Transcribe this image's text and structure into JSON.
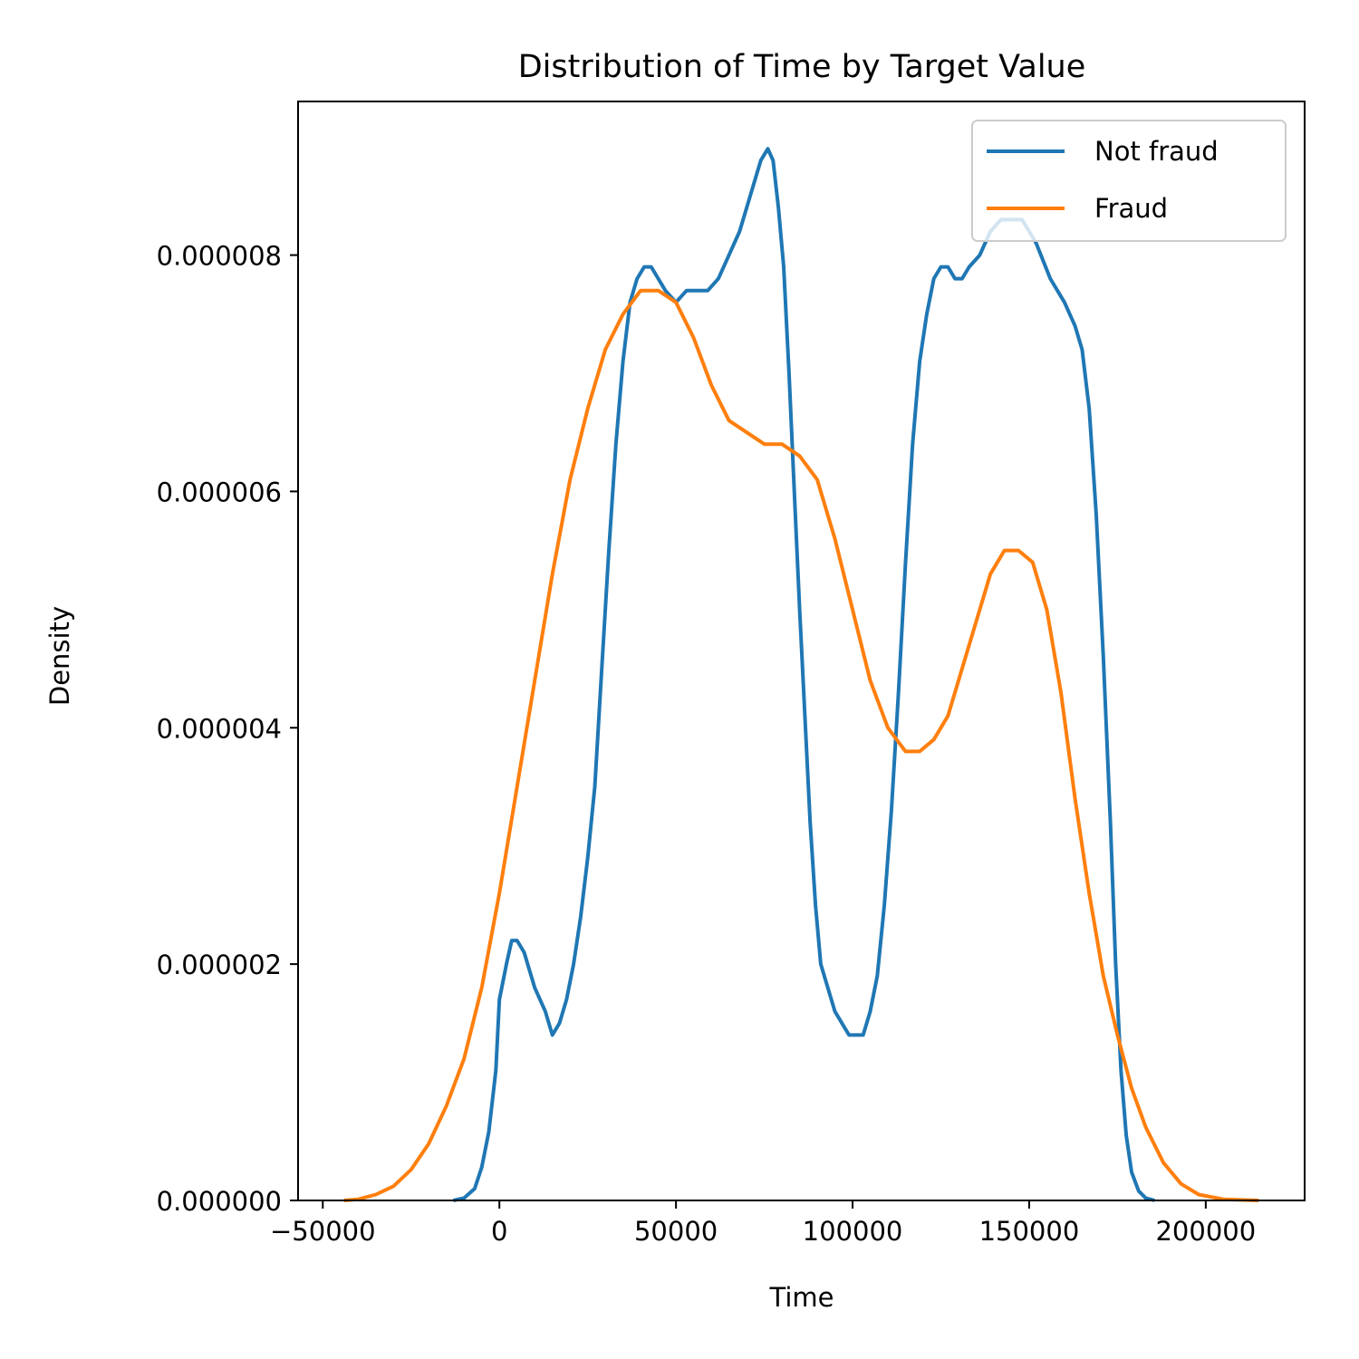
{
  "chart_data": {
    "type": "line",
    "title": "Distribution of Time by Target Value",
    "xlabel": "Time",
    "ylabel": "Density",
    "xlim": [
      -57000,
      228000
    ],
    "ylim": [
      0,
      9.3e-06
    ],
    "xticks": [
      -50000,
      0,
      50000,
      100000,
      150000,
      200000
    ],
    "xtick_labels": [
      "−50000",
      "0",
      "50000",
      "100000",
      "150000",
      "200000"
    ],
    "yticks": [
      0,
      2e-06,
      4e-06,
      6e-06,
      8e-06
    ],
    "ytick_labels": [
      "0.000000",
      "0.000002",
      "0.000004",
      "0.000006",
      "0.000008"
    ],
    "grid": false,
    "legend_position": "top-right",
    "series": [
      {
        "name": "Not fraud",
        "color": "#1f77b4",
        "points": [
          [
            -13000,
            0.0
          ],
          [
            -10000,
            2e-08
          ],
          [
            -7000,
            1e-07
          ],
          [
            -5000,
            2.8e-07
          ],
          [
            -3000,
            5.8e-07
          ],
          [
            -1000,
            1.1e-06
          ],
          [
            0,
            1.7e-06
          ],
          [
            2000,
            2e-06
          ],
          [
            3500,
            2.2e-06
          ],
          [
            5000,
            2.2e-06
          ],
          [
            7000,
            2.1e-06
          ],
          [
            10000,
            1.8e-06
          ],
          [
            13000,
            1.6e-06
          ],
          [
            15000,
            1.4e-06
          ],
          [
            17000,
            1.5e-06
          ],
          [
            19000,
            1.7e-06
          ],
          [
            21000,
            2e-06
          ],
          [
            23000,
            2.4e-06
          ],
          [
            25000,
            2.9e-06
          ],
          [
            27000,
            3.5e-06
          ],
          [
            29000,
            4.5e-06
          ],
          [
            31000,
            5.5e-06
          ],
          [
            33000,
            6.4e-06
          ],
          [
            35000,
            7.1e-06
          ],
          [
            37000,
            7.6e-06
          ],
          [
            39000,
            7.8e-06
          ],
          [
            41000,
            7.9e-06
          ],
          [
            43000,
            7.9e-06
          ],
          [
            45000,
            7.8e-06
          ],
          [
            47000,
            7.7e-06
          ],
          [
            50000,
            7.6e-06
          ],
          [
            53000,
            7.7e-06
          ],
          [
            56000,
            7.7e-06
          ],
          [
            59000,
            7.7e-06
          ],
          [
            62000,
            7.8e-06
          ],
          [
            65000,
            8e-06
          ],
          [
            68000,
            8.2e-06
          ],
          [
            70000,
            8.4e-06
          ],
          [
            72000,
            8.6e-06
          ],
          [
            74000,
            8.8e-06
          ],
          [
            76000,
            8.9e-06
          ],
          [
            77500,
            8.8e-06
          ],
          [
            79000,
            8.4e-06
          ],
          [
            80500,
            7.9e-06
          ],
          [
            82000,
            7e-06
          ],
          [
            83500,
            6e-06
          ],
          [
            85000,
            5e-06
          ],
          [
            86500,
            4.1e-06
          ],
          [
            88000,
            3.2e-06
          ],
          [
            89500,
            2.5e-06
          ],
          [
            91000,
            2e-06
          ],
          [
            93000,
            1.8e-06
          ],
          [
            95000,
            1.6e-06
          ],
          [
            97000,
            1.5e-06
          ],
          [
            99000,
            1.4e-06
          ],
          [
            101000,
            1.4e-06
          ],
          [
            103000,
            1.4e-06
          ],
          [
            105000,
            1.6e-06
          ],
          [
            107000,
            1.9e-06
          ],
          [
            109000,
            2.5e-06
          ],
          [
            111000,
            3.3e-06
          ],
          [
            113000,
            4.3e-06
          ],
          [
            115000,
            5.4e-06
          ],
          [
            117000,
            6.4e-06
          ],
          [
            119000,
            7.1e-06
          ],
          [
            121000,
            7.5e-06
          ],
          [
            123000,
            7.8e-06
          ],
          [
            125000,
            7.9e-06
          ],
          [
            127000,
            7.9e-06
          ],
          [
            129000,
            7.8e-06
          ],
          [
            131000,
            7.8e-06
          ],
          [
            133000,
            7.9e-06
          ],
          [
            136000,
            8e-06
          ],
          [
            139000,
            8.2e-06
          ],
          [
            142000,
            8.3e-06
          ],
          [
            145000,
            8.3e-06
          ],
          [
            148000,
            8.3e-06
          ],
          [
            152000,
            8.1e-06
          ],
          [
            156000,
            7.8e-06
          ],
          [
            160000,
            7.6e-06
          ],
          [
            163000,
            7.4e-06
          ],
          [
            165000,
            7.2e-06
          ],
          [
            167000,
            6.7e-06
          ],
          [
            169000,
            5.8e-06
          ],
          [
            171000,
            4.6e-06
          ],
          [
            173000,
            3.2e-06
          ],
          [
            174500,
            2e-06
          ],
          [
            176000,
            1.1e-06
          ],
          [
            177500,
            5.5e-07
          ],
          [
            179000,
            2.4e-07
          ],
          [
            181000,
            8e-08
          ],
          [
            183000,
            2e-08
          ],
          [
            185500,
            0.0
          ]
        ]
      },
      {
        "name": "Fraud",
        "color": "#ff7f0e",
        "points": [
          [
            -44000,
            0.0
          ],
          [
            -40000,
            1e-08
          ],
          [
            -35000,
            5e-08
          ],
          [
            -30000,
            1.2e-07
          ],
          [
            -25000,
            2.6e-07
          ],
          [
            -20000,
            4.8e-07
          ],
          [
            -15000,
            8e-07
          ],
          [
            -10000,
            1.2e-06
          ],
          [
            -5000,
            1.8e-06
          ],
          [
            0,
            2.6e-06
          ],
          [
            5000,
            3.5e-06
          ],
          [
            10000,
            4.4e-06
          ],
          [
            15000,
            5.3e-06
          ],
          [
            20000,
            6.1e-06
          ],
          [
            25000,
            6.7e-06
          ],
          [
            30000,
            7.2e-06
          ],
          [
            35000,
            7.5e-06
          ],
          [
            40000,
            7.7e-06
          ],
          [
            45000,
            7.7e-06
          ],
          [
            50000,
            7.6e-06
          ],
          [
            55000,
            7.3e-06
          ],
          [
            60000,
            6.9e-06
          ],
          [
            65000,
            6.6e-06
          ],
          [
            70000,
            6.5e-06
          ],
          [
            75000,
            6.4e-06
          ],
          [
            80000,
            6.4e-06
          ],
          [
            85000,
            6.3e-06
          ],
          [
            90000,
            6.1e-06
          ],
          [
            95000,
            5.6e-06
          ],
          [
            100000,
            5e-06
          ],
          [
            105000,
            4.4e-06
          ],
          [
            110000,
            4e-06
          ],
          [
            115000,
            3.8e-06
          ],
          [
            119000,
            3.8e-06
          ],
          [
            123000,
            3.9e-06
          ],
          [
            127000,
            4.1e-06
          ],
          [
            131000,
            4.5e-06
          ],
          [
            135000,
            4.9e-06
          ],
          [
            139000,
            5.3e-06
          ],
          [
            143000,
            5.5e-06
          ],
          [
            147000,
            5.5e-06
          ],
          [
            151000,
            5.4e-06
          ],
          [
            155000,
            5e-06
          ],
          [
            159000,
            4.3e-06
          ],
          [
            163000,
            3.4e-06
          ],
          [
            167000,
            2.6e-06
          ],
          [
            171000,
            1.9e-06
          ],
          [
            175000,
            1.4e-06
          ],
          [
            179000,
            9.5e-07
          ],
          [
            183000,
            6.2e-07
          ],
          [
            188000,
            3.2e-07
          ],
          [
            193000,
            1.4e-07
          ],
          [
            198000,
            5e-08
          ],
          [
            205000,
            1e-08
          ],
          [
            215000,
            0.0
          ]
        ]
      }
    ]
  }
}
